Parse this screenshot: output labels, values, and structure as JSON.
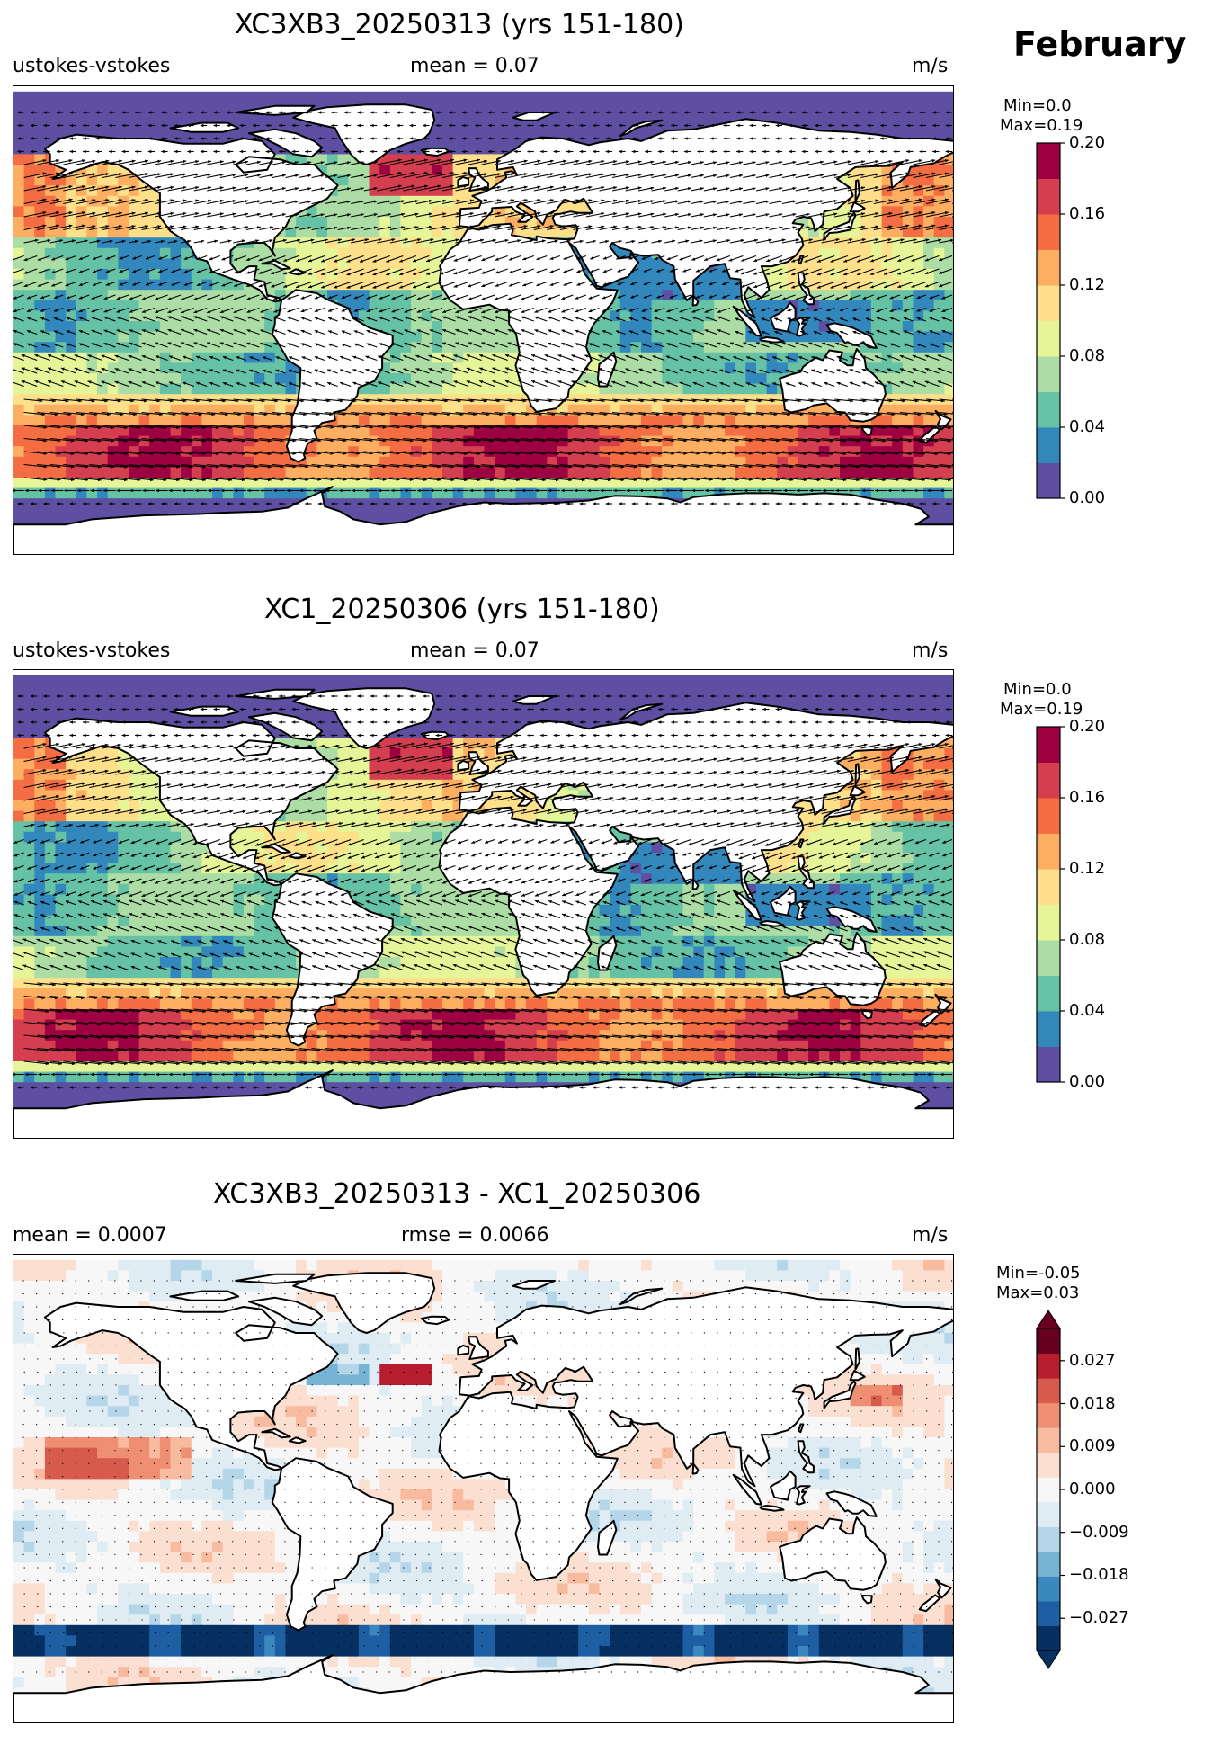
{
  "month": "February",
  "panels": [
    {
      "title": "XC3XB3_20250313 (yrs 151-180)",
      "left_label": "ustokes-vstokes",
      "center_label": "mean = 0.07",
      "right_label": "m/s",
      "minmax": [
        "Min=0.0",
        "Max=0.19"
      ],
      "colorbar": {
        "colors": [
          "#5e4fa2",
          "#3288bd",
          "#66c2a5",
          "#abdda4",
          "#e6f598",
          "#fee08b",
          "#fdae61",
          "#f46d43",
          "#d53e4f",
          "#9e0142"
        ],
        "ticks": [
          "0.00",
          "0.04",
          "0.08",
          "0.12",
          "0.16",
          "0.20"
        ]
      }
    },
    {
      "title": "XC1_20250306 (yrs 151-180)",
      "left_label": "ustokes-vstokes",
      "center_label": "mean = 0.07",
      "right_label": "m/s",
      "minmax": [
        "Min=0.0",
        "Max=0.19"
      ],
      "colorbar": {
        "colors": [
          "#5e4fa2",
          "#3288bd",
          "#66c2a5",
          "#abdda4",
          "#e6f598",
          "#fee08b",
          "#fdae61",
          "#f46d43",
          "#d53e4f",
          "#9e0142"
        ],
        "ticks": [
          "0.00",
          "0.04",
          "0.08",
          "0.12",
          "0.16",
          "0.20"
        ]
      }
    },
    {
      "title": "XC3XB3_20250313 - XC1_20250306",
      "left_label": "mean = 0.0007",
      "center_label": "rmse = 0.0066",
      "right_label": "m/s",
      "minmax": [
        "Min=-0.05",
        "Max=0.03"
      ],
      "colorbar": {
        "colors": [
          "#053061",
          "#1d5fa2",
          "#3b88c0",
          "#76b4d6",
          "#b4d6e8",
          "#dfecf4",
          "#f7f7f7",
          "#fbdfd0",
          "#f8bba0",
          "#ee8f73",
          "#d65b4c",
          "#b71d2e",
          "#67001f"
        ],
        "ticks": [
          "−0.027",
          "−0.018",
          "−0.009",
          "0.000",
          "0.009",
          "0.018",
          "0.027"
        ]
      }
    }
  ]
}
